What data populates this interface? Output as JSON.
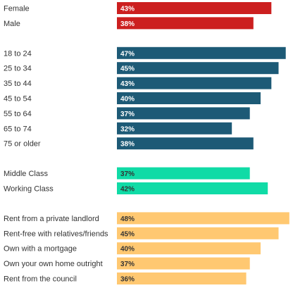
{
  "chart_data": {
    "type": "bar",
    "orientation": "horizontal",
    "value_format": "percent",
    "xlim": [
      0,
      50
    ],
    "grid": false,
    "legend": "none",
    "groups": [
      {
        "color": "#cc1f1f",
        "label_color": "#ffffff",
        "rows": [
          {
            "category": "Female",
            "value": 43,
            "label": "43%"
          },
          {
            "category": "Male",
            "value": 38,
            "label": "38%"
          }
        ]
      },
      {
        "color": "#1d5a76",
        "label_color": "#ffffff",
        "rows": [
          {
            "category": "18 to 24",
            "value": 47,
            "label": "47%"
          },
          {
            "category": "25 to 34",
            "value": 45,
            "label": "45%"
          },
          {
            "category": "35 to 44",
            "value": 43,
            "label": "43%"
          },
          {
            "category": "45 to 54",
            "value": 40,
            "label": "40%"
          },
          {
            "category": "55 to 64",
            "value": 37,
            "label": "37%"
          },
          {
            "category": "65 to 74",
            "value": 32,
            "label": "32%"
          },
          {
            "category": "75 or older",
            "value": 38,
            "label": "38%"
          }
        ]
      },
      {
        "color": "#10dba6",
        "label_color": "#333333",
        "rows": [
          {
            "category": "Middle Class",
            "value": 37,
            "label": "37%"
          },
          {
            "category": "Working Class",
            "value": 42,
            "label": "42%"
          }
        ]
      },
      {
        "color": "#ffc871",
        "label_color": "#333333",
        "rows": [
          {
            "category": "Rent from a private landlord",
            "value": 48,
            "label": "48%"
          },
          {
            "category": "Rent-free with relatives/friends",
            "value": 45,
            "label": "45%"
          },
          {
            "category": "Own with a mortgage",
            "value": 40,
            "label": "40%"
          },
          {
            "category": "Own your own home outright",
            "value": 37,
            "label": "37%"
          },
          {
            "category": "Rent from the council",
            "value": 36,
            "label": "36%"
          }
        ]
      }
    ]
  }
}
